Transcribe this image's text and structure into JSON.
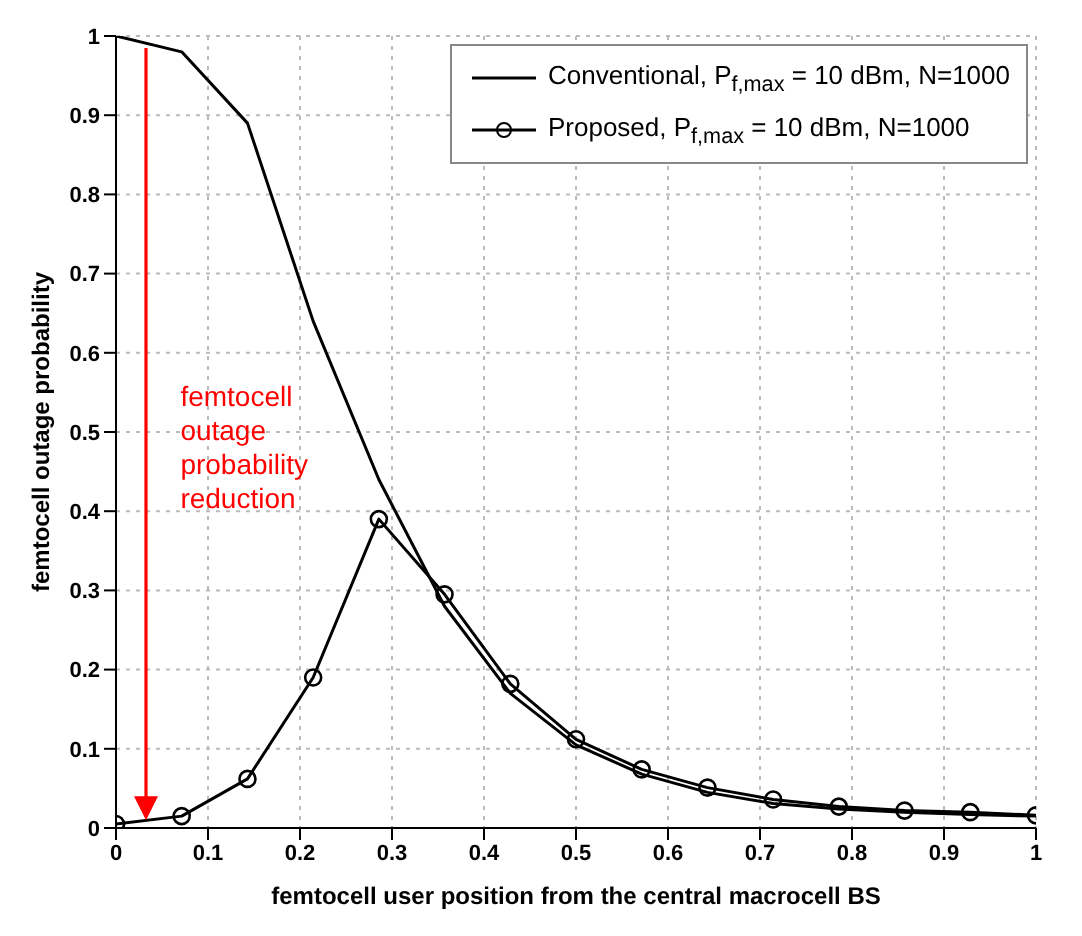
{
  "chart_data": {
    "type": "line",
    "xlabel": "femtocell user position from the central macrocell BS",
    "ylabel": "femtocell outage probability",
    "xlim": [
      0,
      1
    ],
    "ylim": [
      0,
      1
    ],
    "xticks": [
      0,
      0.1,
      0.2,
      0.3,
      0.4,
      0.5,
      0.6,
      0.7,
      0.8,
      0.9,
      1
    ],
    "yticks": [
      0,
      0.1,
      0.2,
      0.3,
      0.4,
      0.5,
      0.6,
      0.7,
      0.8,
      0.9,
      1
    ],
    "grid": true,
    "legend": "top right",
    "line_style": "solid",
    "annotations": [
      "femtocell outage probability reduction"
    ],
    "series": [
      {
        "name": "Conventional, P$_{f,max}$ = 10 dBm, N=1000",
        "color": "#000000",
        "marker": "none",
        "x": [
          0,
          0.0714,
          0.1429,
          0.2143,
          0.2857,
          0.3571,
          0.4286,
          0.5,
          0.5714,
          0.6429,
          0.7143,
          0.7857,
          0.8571,
          0.9286,
          1
        ],
        "values": [
          1,
          0.98,
          0.89,
          0.64,
          0.44,
          0.28,
          0.17,
          0.105,
          0.068,
          0.045,
          0.031,
          0.024,
          0.02,
          0.017,
          0.015
        ]
      },
      {
        "name": "Proposed, P$_{f,max}$ = 10 dBm, N=1000",
        "color": "#000000",
        "marker": "circle",
        "x": [
          0,
          0.0714,
          0.1429,
          0.2143,
          0.2857,
          0.3571,
          0.4286,
          0.5,
          0.5714,
          0.6429,
          0.7143,
          0.7857,
          0.8571,
          0.9286,
          1
        ],
        "values": [
          0.005,
          0.015,
          0.062,
          0.19,
          0.39,
          0.295,
          0.182,
          0.112,
          0.074,
          0.051,
          0.036,
          0.027,
          0.022,
          0.02,
          0.016
        ]
      }
    ]
  }
}
